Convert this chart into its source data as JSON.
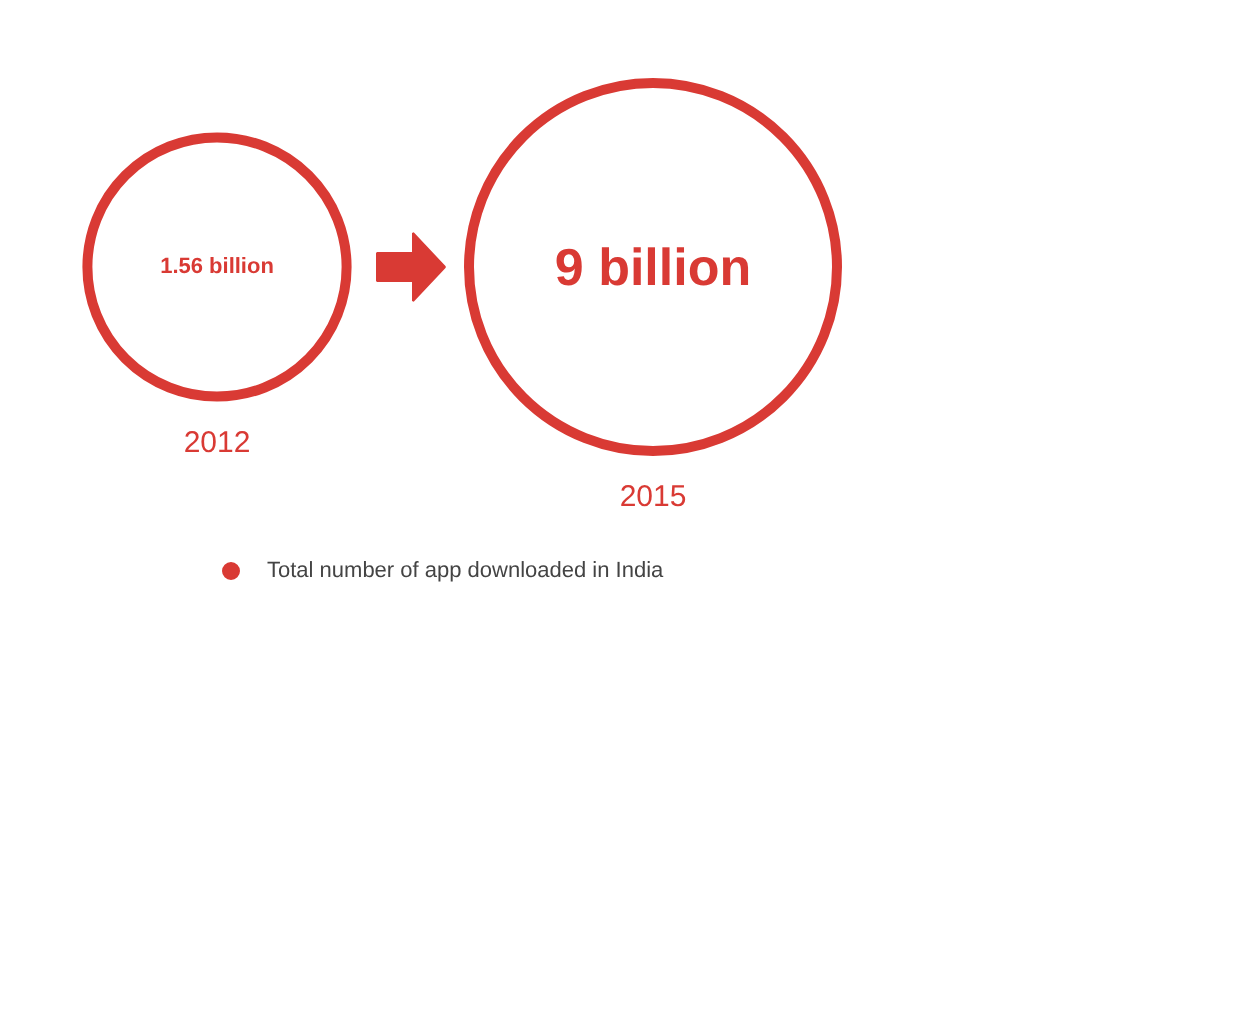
{
  "chart_data": {
    "type": "other",
    "categories": [
      "2012",
      "2015"
    ],
    "series": [
      {
        "name": "Total number of app downloaded in India",
        "color": "#d93a34",
        "values": [
          1.56,
          9
        ],
        "value_labels": [
          "1.56 billion",
          "9 billion"
        ]
      }
    ],
    "legend": "bottom"
  }
}
